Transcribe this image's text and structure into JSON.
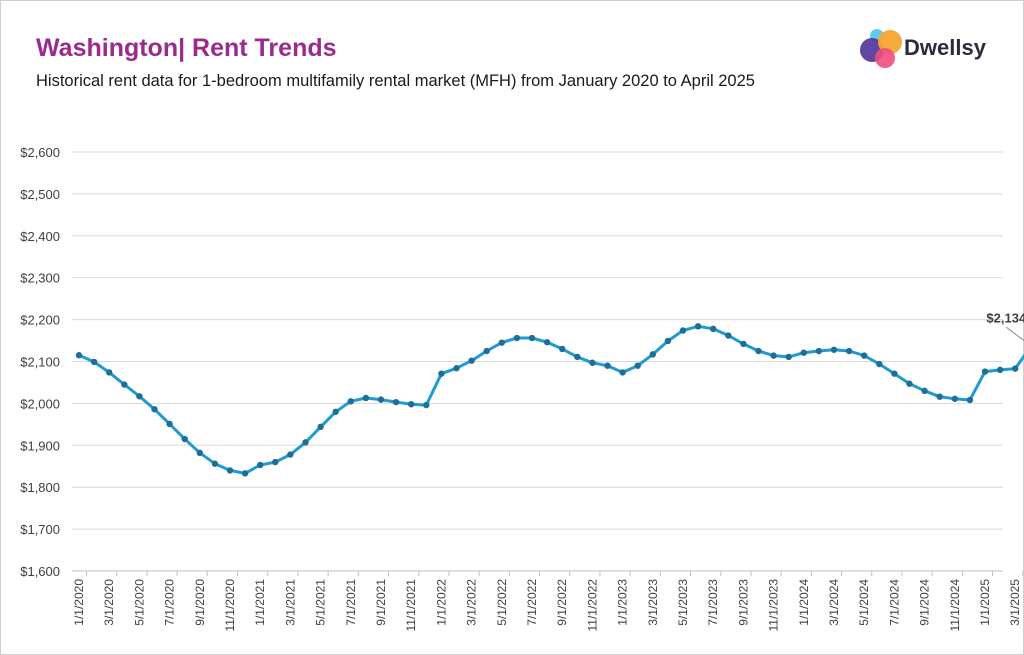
{
  "header": {
    "title": "Washington| Rent Trends",
    "subtitle": "Historical rent data for 1-bedroom multifamily rental market (MFH) from January 2020 to April 2025",
    "brand": "Dwellsy"
  },
  "colors": {
    "title": "#9b2a8f",
    "line": "#1f9bcf",
    "marker": "#1d6f98",
    "grid": "#d9d9d9"
  },
  "chart_data": {
    "type": "line",
    "title": "",
    "xlabel": "",
    "ylabel": "",
    "ylim": [
      1600,
      2600
    ],
    "yticks": [
      "$1,600",
      "$1,700",
      "$1,800",
      "$1,900",
      "$2,000",
      "$2,100",
      "$2,200",
      "$2,300",
      "$2,400",
      "$2,500",
      "$2,600"
    ],
    "xtick_labels": [
      "1/1/2020",
      "3/1/2020",
      "5/1/2020",
      "7/1/2020",
      "9/1/2020",
      "11/1/2020",
      "1/1/2021",
      "3/1/2021",
      "5/1/2021",
      "7/1/2021",
      "9/1/2021",
      "11/1/2021",
      "1/1/2022",
      "3/1/2022",
      "5/1/2022",
      "7/1/2022",
      "9/1/2022",
      "11/1/2022",
      "1/1/2023",
      "3/1/2023",
      "5/1/2023",
      "7/1/2023",
      "9/1/2023",
      "11/1/2023",
      "1/1/2024",
      "3/1/2024",
      "5/1/2024",
      "7/1/2024",
      "9/1/2024",
      "11/1/2024",
      "1/1/2025",
      "3/1/2025"
    ],
    "x": [
      "1/1/2020",
      "2/1/2020",
      "3/1/2020",
      "4/1/2020",
      "5/1/2020",
      "6/1/2020",
      "7/1/2020",
      "8/1/2020",
      "9/1/2020",
      "10/1/2020",
      "11/1/2020",
      "12/1/2020",
      "1/1/2021",
      "2/1/2021",
      "3/1/2021",
      "4/1/2021",
      "5/1/2021",
      "6/1/2021",
      "7/1/2021",
      "8/1/2021",
      "9/1/2021",
      "10/1/2021",
      "11/1/2021",
      "12/1/2021",
      "1/1/2022",
      "2/1/2022",
      "3/1/2022",
      "4/1/2022",
      "5/1/2022",
      "6/1/2022",
      "7/1/2022",
      "8/1/2022",
      "9/1/2022",
      "10/1/2022",
      "11/1/2022",
      "12/1/2022",
      "1/1/2023",
      "2/1/2023",
      "3/1/2023",
      "4/1/2023",
      "5/1/2023",
      "6/1/2023",
      "7/1/2023",
      "8/1/2023",
      "9/1/2023",
      "10/1/2023",
      "11/1/2023",
      "12/1/2023",
      "1/1/2024",
      "2/1/2024",
      "3/1/2024",
      "4/1/2024",
      "5/1/2024",
      "6/1/2024",
      "7/1/2024",
      "8/1/2024",
      "9/1/2024",
      "10/1/2024",
      "11/1/2024",
      "12/1/2024",
      "1/1/2025",
      "2/1/2025",
      "3/1/2025",
      "4/1/2025"
    ],
    "values": [
      2115,
      2099,
      2074,
      2045,
      2017,
      1986,
      1951,
      1915,
      1882,
      1856,
      1840,
      1833,
      1853,
      1860,
      1878,
      1907,
      1944,
      1980,
      2005,
      2013,
      2009,
      2003,
      1998,
      1996,
      2071,
      2084,
      2102,
      2125,
      2145,
      2156,
      2156,
      2146,
      2130,
      2111,
      2097,
      2090,
      2074,
      2090,
      2117,
      2149,
      2174,
      2184,
      2178,
      2162,
      2142,
      2125,
      2114,
      2111,
      2121,
      2125,
      2128,
      2125,
      2114,
      2094,
      2071,
      2047,
      2030,
      2016,
      2011,
      2008,
      2076,
      2080,
      2083,
      2134
    ],
    "annotation": {
      "label": "$2,134",
      "x": "4/1/2025",
      "value": 2134
    },
    "grid": true,
    "legend": "none"
  }
}
